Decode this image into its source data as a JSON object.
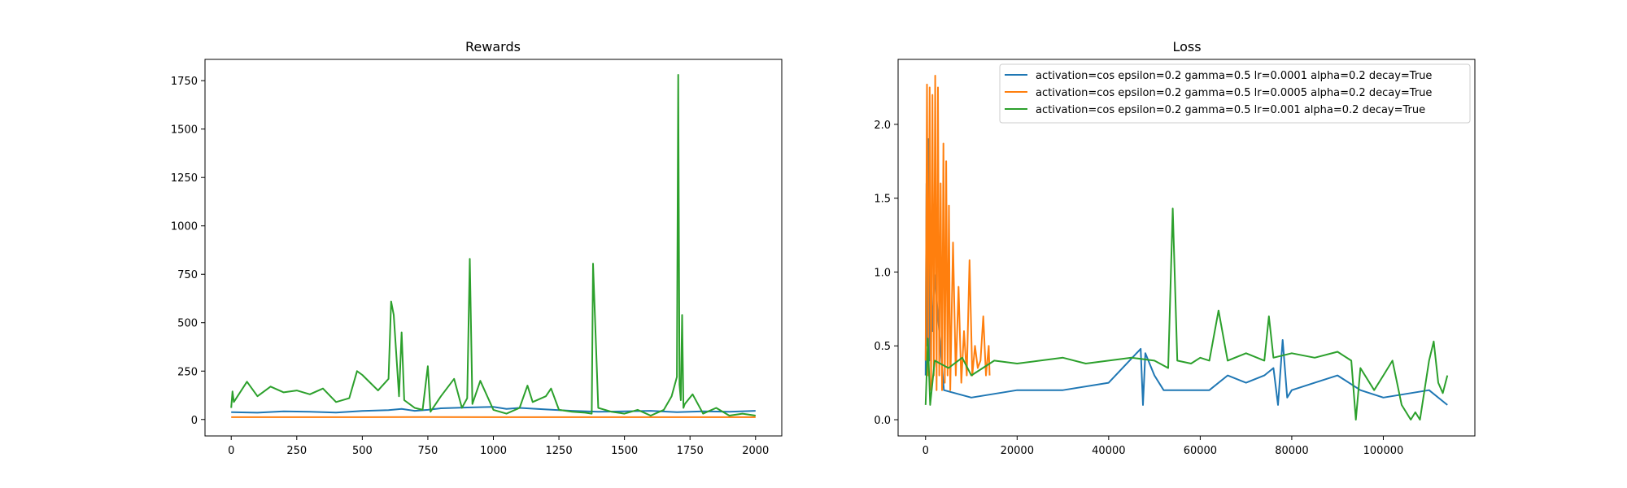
{
  "chart_data": [
    {
      "type": "line",
      "title": "Rewards",
      "xlabel": "",
      "ylabel": "",
      "xlim": [
        -100,
        2100
      ],
      "ylim": [
        -85,
        1860
      ],
      "xticks": [
        0,
        250,
        500,
        750,
        1000,
        1250,
        1500,
        1750,
        2000
      ],
      "xtick_labels": [
        "0",
        "250",
        "500",
        "750",
        "1000",
        "1250",
        "1500",
        "1750",
        "2000"
      ],
      "yticks": [
        0,
        250,
        500,
        750,
        1000,
        1250,
        1500,
        1750
      ],
      "ytick_labels": [
        "0",
        "250",
        "500",
        "750",
        "1000",
        "1250",
        "1500",
        "1750"
      ],
      "grid": false,
      "series": [
        {
          "color": "#1f77b4",
          "x": [
            0,
            100,
            200,
            300,
            400,
            500,
            600,
            650,
            700,
            750,
            800,
            900,
            1000,
            1050,
            1100,
            1200,
            1250,
            1300,
            1400,
            1500,
            1600,
            1700,
            1800,
            1900,
            2000
          ],
          "y": [
            38,
            35,
            42,
            40,
            36,
            44,
            48,
            55,
            45,
            50,
            58,
            62,
            65,
            55,
            60,
            52,
            48,
            45,
            40,
            42,
            45,
            38,
            42,
            40,
            45
          ]
        },
        {
          "color": "#ff7f0e",
          "x": [
            0,
            250,
            500,
            750,
            1000,
            1250,
            1500,
            1750,
            2000
          ],
          "y": [
            12,
            12,
            12,
            13,
            12,
            12,
            12,
            12,
            12
          ]
        },
        {
          "color": "#2ca02c",
          "x": [
            0,
            5,
            10,
            60,
            100,
            150,
            200,
            250,
            300,
            350,
            400,
            450,
            480,
            500,
            530,
            560,
            600,
            610,
            620,
            640,
            650,
            660,
            700,
            730,
            750,
            760,
            800,
            850,
            880,
            900,
            910,
            920,
            950,
            1000,
            1050,
            1100,
            1130,
            1150,
            1200,
            1220,
            1250,
            1300,
            1350,
            1375,
            1380,
            1400,
            1450,
            1500,
            1550,
            1600,
            1650,
            1680,
            1700,
            1705,
            1710,
            1715,
            1720,
            1725,
            1730,
            1760,
            1800,
            1850,
            1900,
            1950,
            2000
          ],
          "y": [
            60,
            145,
            90,
            195,
            120,
            170,
            140,
            150,
            130,
            160,
            90,
            110,
            250,
            230,
            190,
            150,
            210,
            610,
            540,
            120,
            450,
            100,
            60,
            50,
            275,
            40,
            120,
            210,
            60,
            110,
            830,
            80,
            200,
            50,
            30,
            60,
            175,
            90,
            120,
            160,
            50,
            40,
            35,
            30,
            805,
            60,
            40,
            30,
            50,
            20,
            50,
            120,
            220,
            1780,
            180,
            100,
            540,
            60,
            80,
            130,
            30,
            60,
            20,
            30,
            20
          ]
        }
      ]
    },
    {
      "type": "line",
      "title": "Loss",
      "xlabel": "",
      "ylabel": "",
      "xlim": [
        -6000,
        120000
      ],
      "ylim": [
        -0.11,
        2.44
      ],
      "xticks": [
        0,
        20000,
        40000,
        60000,
        80000,
        100000
      ],
      "xtick_labels": [
        "0",
        "20000",
        "40000",
        "60000",
        "80000",
        "100000"
      ],
      "yticks": [
        0.0,
        0.5,
        1.0,
        1.5,
        2.0
      ],
      "ytick_labels": [
        "0.0",
        "0.5",
        "1.0",
        "1.5",
        "2.0"
      ],
      "grid": false,
      "legend": {
        "placement": "top-right",
        "entries": [
          "activation=cos epsilon=0.2 gamma=0.5 lr=0.0001 alpha=0.2 decay=True",
          "activation=cos epsilon=0.2 gamma=0.5 lr=0.0005 alpha=0.2 decay=True",
          "activation=cos epsilon=0.2 gamma=0.5 lr=0.001 alpha=0.2 decay=True"
        ]
      },
      "series": [
        {
          "color": "#1f77b4",
          "x": [
            0,
            200,
            400,
            600,
            800,
            1000,
            1500,
            2000,
            4000,
            10000,
            20000,
            30000,
            40000,
            47000,
            47500,
            48000,
            50000,
            52000,
            62000,
            66000,
            70000,
            74000,
            76000,
            77000,
            78000,
            79000,
            80000,
            85000,
            90000,
            95000,
            100000,
            110000,
            114000
          ],
          "y": [
            0.3,
            1.6,
            0.5,
            1.9,
            0.4,
            1.25,
            0.6,
            0.98,
            0.2,
            0.15,
            0.2,
            0.2,
            0.25,
            0.48,
            0.1,
            0.45,
            0.3,
            0.2,
            0.2,
            0.3,
            0.25,
            0.3,
            0.35,
            0.1,
            0.54,
            0.15,
            0.2,
            0.25,
            0.3,
            0.2,
            0.15,
            0.2,
            0.1
          ]
        },
        {
          "color": "#ff7f0e",
          "x": [
            0,
            300,
            600,
            900,
            1200,
            1500,
            1800,
            2100,
            2400,
            2700,
            3000,
            3300,
            3600,
            3900,
            4200,
            4500,
            4800,
            5100,
            5400,
            6000,
            6600,
            7200,
            7800,
            8400,
            9000,
            9600,
            10200,
            10800,
            11400,
            12000,
            12600,
            13200,
            13800,
            14000
          ],
          "y": [
            0.4,
            2.27,
            0.3,
            2.25,
            0.2,
            2.2,
            0.3,
            2.33,
            0.2,
            2.25,
            0.3,
            1.6,
            0.2,
            1.87,
            0.25,
            1.75,
            0.3,
            1.45,
            0.2,
            1.2,
            0.3,
            0.9,
            0.25,
            0.6,
            0.3,
            1.08,
            0.3,
            0.5,
            0.35,
            0.4,
            0.7,
            0.3,
            0.5,
            0.3
          ]
        },
        {
          "color": "#2ca02c",
          "x": [
            0,
            500,
            1000,
            2000,
            5000,
            8000,
            10000,
            15000,
            20000,
            25000,
            30000,
            35000,
            40000,
            45000,
            50000,
            53000,
            54000,
            55000,
            58000,
            60000,
            62000,
            64000,
            66000,
            70000,
            74000,
            75000,
            76000,
            80000,
            85000,
            90000,
            93000,
            94000,
            95000,
            98000,
            100000,
            102000,
            104000,
            106000,
            107000,
            108000,
            110000,
            111000,
            112000,
            113000,
            114000
          ],
          "y": [
            0.1,
            0.55,
            0.1,
            0.4,
            0.35,
            0.42,
            0.3,
            0.4,
            0.38,
            0.4,
            0.42,
            0.38,
            0.4,
            0.42,
            0.4,
            0.35,
            1.43,
            0.4,
            0.38,
            0.42,
            0.4,
            0.74,
            0.4,
            0.45,
            0.4,
            0.7,
            0.42,
            0.45,
            0.42,
            0.46,
            0.4,
            0.0,
            0.35,
            0.2,
            0.3,
            0.4,
            0.1,
            0.0,
            0.05,
            0.0,
            0.4,
            0.53,
            0.25,
            0.18,
            0.3
          ]
        }
      ]
    }
  ]
}
